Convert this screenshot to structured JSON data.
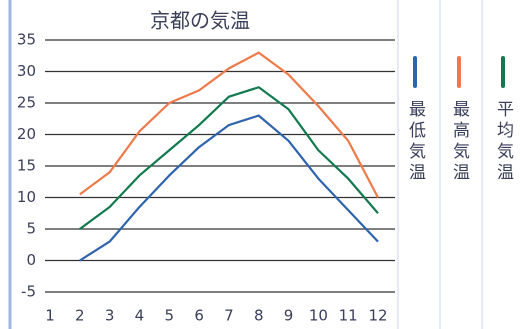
{
  "chart_data": {
    "type": "line",
    "title": "京都の気温",
    "x": [
      1,
      2,
      3,
      4,
      5,
      6,
      7,
      8,
      9,
      10,
      11,
      12
    ],
    "xlim": [
      1,
      12
    ],
    "xticks": [
      1,
      2,
      3,
      4,
      5,
      6,
      7,
      8,
      9,
      10,
      11,
      12
    ],
    "ylim": [
      -5,
      35
    ],
    "yticks": [
      -5,
      0,
      5,
      10,
      15,
      20,
      25,
      30,
      35
    ],
    "grid": true,
    "legend": "right",
    "series": [
      {
        "name": "最低気温",
        "color": "#2f64ad",
        "values": [
          null,
          0,
          3,
          8.5,
          13.5,
          18,
          21.5,
          23,
          19,
          13,
          8,
          3
        ]
      },
      {
        "name": "最高気温",
        "color": "#ee7a4a",
        "values": [
          null,
          10.5,
          14,
          20.5,
          25,
          27,
          30.5,
          33,
          29.5,
          24.5,
          19,
          10
        ]
      },
      {
        "name": "平均気温",
        "color": "#127a4e",
        "values": [
          null,
          5,
          8.5,
          13.5,
          17.5,
          21.5,
          26,
          27.5,
          24,
          17.5,
          13,
          7.5
        ]
      }
    ]
  }
}
